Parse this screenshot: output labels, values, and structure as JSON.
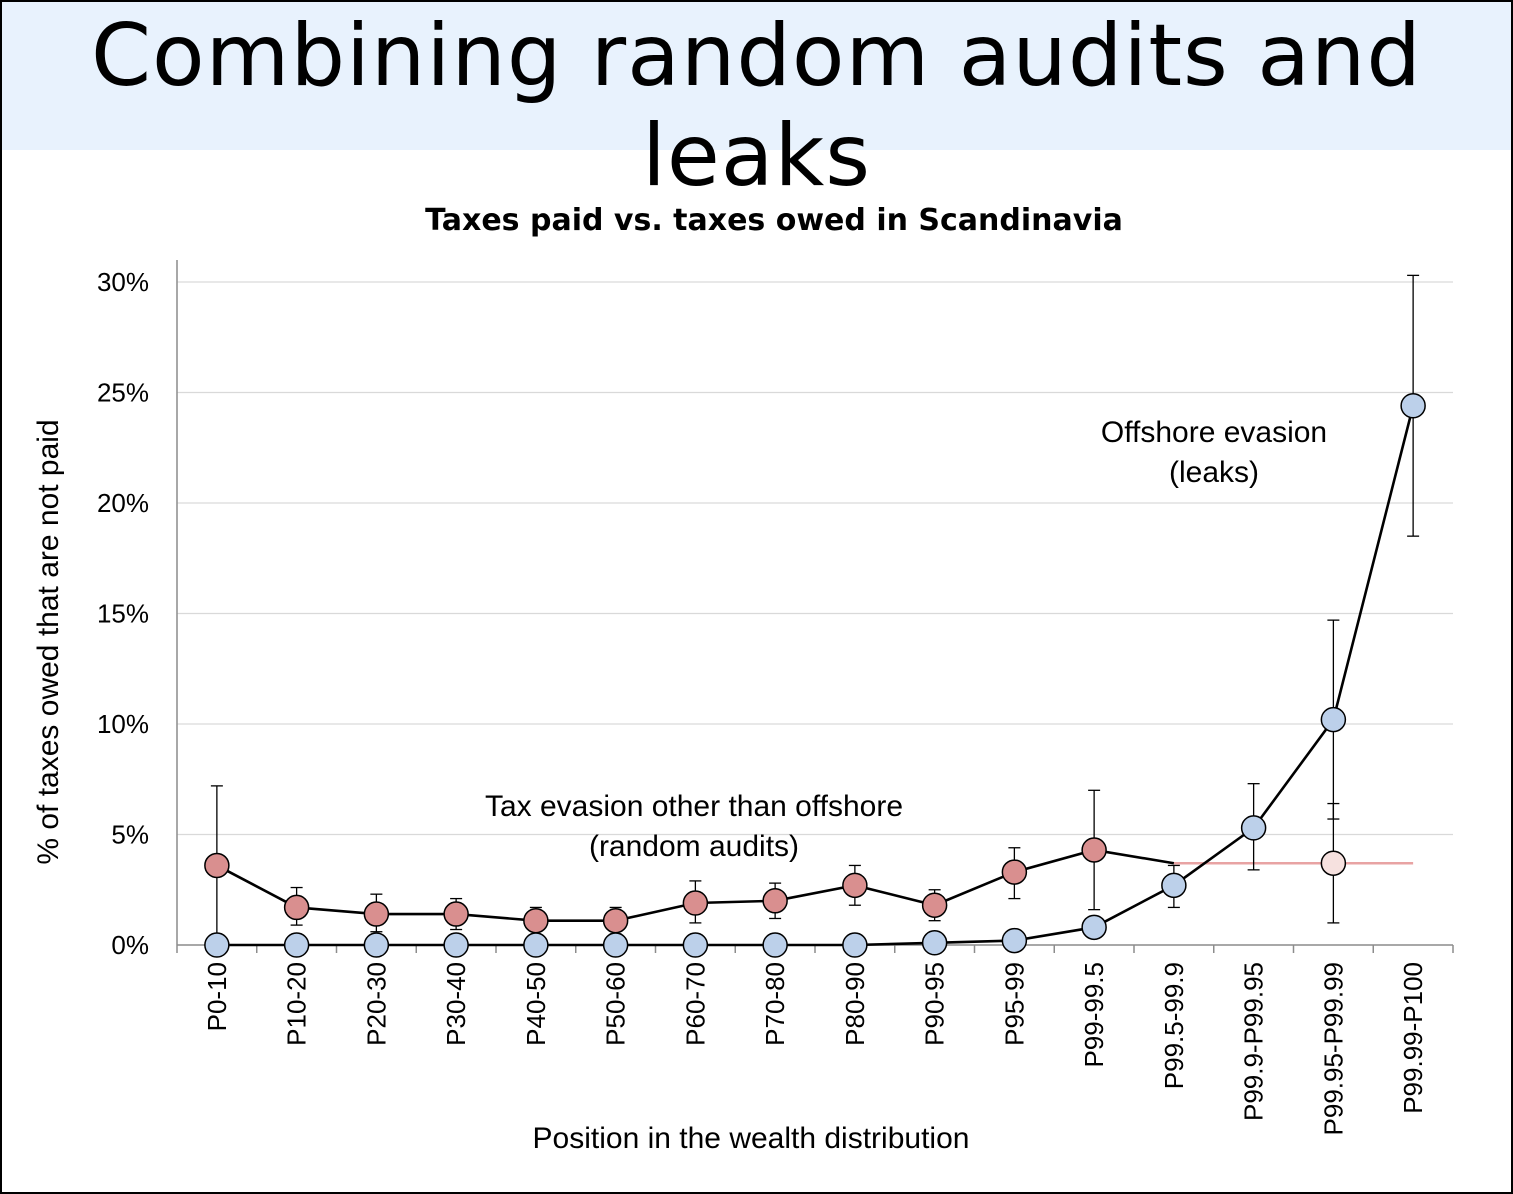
{
  "slide": {
    "title": "Combining random audits and leaks"
  },
  "colors": {
    "header_bg": "#e8f2fd",
    "audit_marker": "#d98f8f",
    "leak_marker": "#bcd0ea",
    "pale_marker": "#f6e1df",
    "pale_line": "#e8a3a3",
    "grid": "#d9d9d9"
  },
  "chart_data": {
    "type": "line",
    "title": "Taxes paid vs. taxes owed in Scandinavia",
    "xlabel": "Position in the wealth distribution",
    "ylabel": "% of taxes owed that are not paid",
    "ylim": [
      0,
      30
    ],
    "y_ticks": [
      "0%",
      "5%",
      "10%",
      "15%",
      "20%",
      "25%",
      "30%"
    ],
    "grid": "horizontal",
    "categories": [
      "P0-10",
      "P10-20",
      "P20-30",
      "P30-40",
      "P40-50",
      "P50-60",
      "P60-70",
      "P70-80",
      "P80-90",
      "P90-95",
      "P95-99",
      "P99-99.5",
      "P99.5-99.9",
      "P99.9-P99.95",
      "P99.95-P99.99",
      "P99.99-P100"
    ],
    "series": [
      {
        "key": "audits",
        "values": [
          3.6,
          1.7,
          1.4,
          1.4,
          1.1,
          1.1,
          1.9,
          2.0,
          2.7,
          1.8,
          3.3,
          4.3,
          3.7,
          null,
          3.7,
          null
        ],
        "err_low": [
          0.0,
          0.9,
          0.6,
          0.7,
          0.4,
          0.5,
          1.0,
          1.2,
          1.8,
          1.1,
          2.1,
          1.6,
          null,
          null,
          1.0,
          null
        ],
        "err_high": [
          7.2,
          2.6,
          2.3,
          2.1,
          1.7,
          1.7,
          2.9,
          2.8,
          3.6,
          2.5,
          4.4,
          7.0,
          null,
          null,
          6.4,
          null
        ]
      },
      {
        "key": "leaks",
        "values": [
          0.0,
          0.0,
          0.0,
          0.0,
          0.0,
          0.0,
          0.0,
          0.0,
          0.0,
          0.1,
          0.2,
          0.8,
          2.7,
          5.3,
          10.2,
          24.4
        ],
        "err_low": [
          null,
          null,
          null,
          null,
          null,
          null,
          null,
          null,
          null,
          null,
          null,
          null,
          1.7,
          3.4,
          5.7,
          18.5
        ],
        "err_high": [
          null,
          null,
          null,
          null,
          null,
          null,
          null,
          null,
          null,
          null,
          null,
          null,
          3.6,
          7.3,
          14.7,
          30.3
        ]
      }
    ],
    "annotations": [
      {
        "key": "leaks",
        "lines": [
          "Offshore evasion",
          "(leaks)"
        ]
      },
      {
        "key": "audits",
        "lines": [
          "Tax evasion other than offshore",
          "(random audits)"
        ]
      }
    ]
  }
}
